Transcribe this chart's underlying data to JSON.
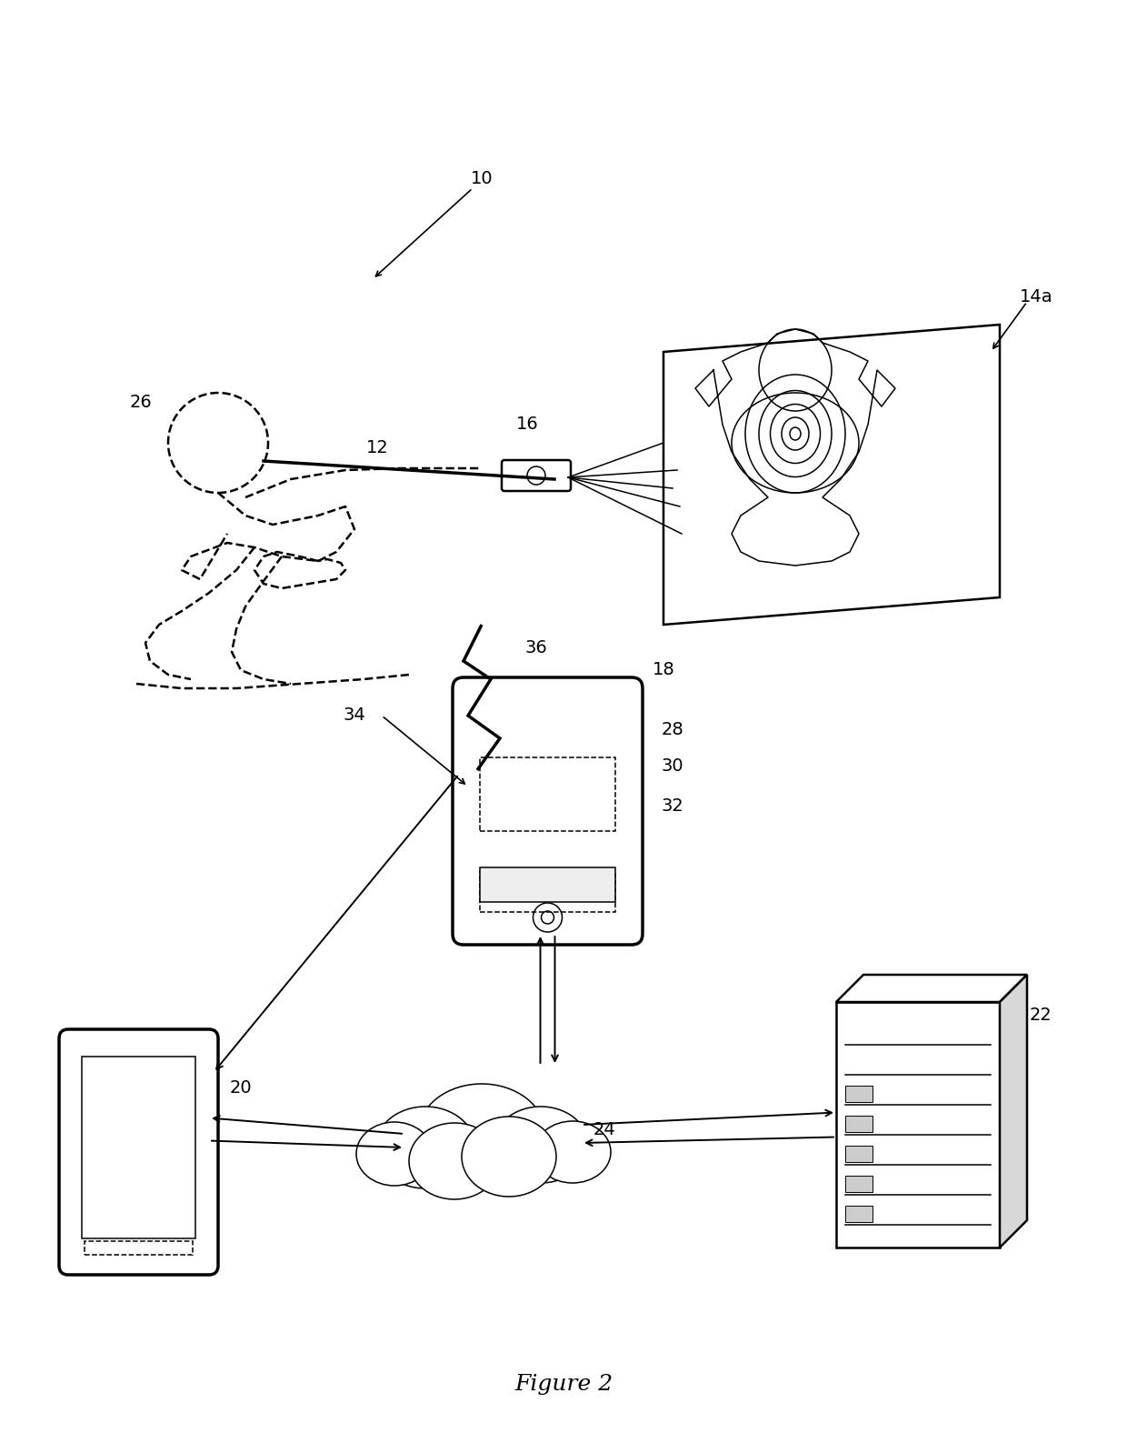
{
  "title": "Figure 2",
  "bg": "#ffffff",
  "lc": "#000000",
  "fig_w": 12.4,
  "fig_h": 15.87,
  "dpi": 100,
  "xlim": [
    0,
    1240
  ],
  "ylim": [
    0,
    1587
  ],
  "label_fs": 14,
  "caption_fs": 18,
  "lw": 1.8,
  "lw_thin": 1.1,
  "lw_thick": 2.5
}
